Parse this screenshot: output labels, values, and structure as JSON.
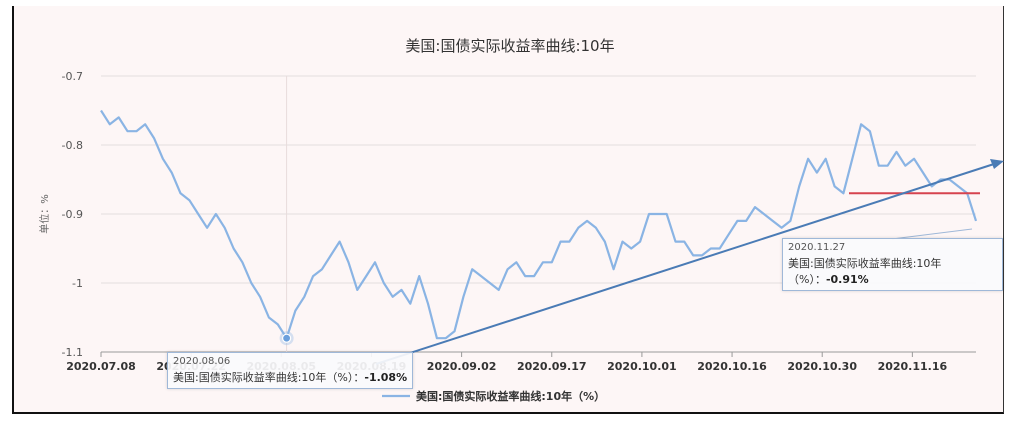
{
  "chart_data": {
    "type": "line",
    "title": "美国:国债实际收益率曲线:10年",
    "ylabel": "单位：%",
    "ylim": [
      -1.1,
      -0.7
    ],
    "yticks": [
      "-0.7",
      "-0.8",
      "-0.9",
      "-1",
      "-1.1"
    ],
    "xtick_labels": [
      "2020.07.08",
      "2020.07.22",
      "2020.08.05",
      "2020.08.19",
      "2020.09.02",
      "2020.09.17",
      "2020.10.01",
      "2020.10.16",
      "2020.10.30",
      "2020.11.16"
    ],
    "legend": "美国:国债实际收益率曲线:10年（%）",
    "series": [
      {
        "name": "美国:国债实际收益率曲线:10年（%）",
        "color": "#8ab4e4",
        "values": [
          -0.75,
          -0.77,
          -0.76,
          -0.78,
          -0.78,
          -0.77,
          -0.79,
          -0.82,
          -0.84,
          -0.87,
          -0.88,
          -0.9,
          -0.92,
          -0.9,
          -0.92,
          -0.95,
          -0.97,
          -1.0,
          -1.02,
          -1.05,
          -1.06,
          -1.08,
          -1.04,
          -1.02,
          -0.99,
          -0.98,
          -0.96,
          -0.94,
          -0.97,
          -1.01,
          -0.99,
          -0.97,
          -1.0,
          -1.02,
          -1.01,
          -1.03,
          -0.99,
          -1.03,
          -1.08,
          -1.08,
          -1.07,
          -1.02,
          -0.98,
          -0.99,
          -1.0,
          -1.01,
          -0.98,
          -0.97,
          -0.99,
          -0.99,
          -0.97,
          -0.97,
          -0.94,
          -0.94,
          -0.92,
          -0.91,
          -0.92,
          -0.94,
          -0.98,
          -0.94,
          -0.95,
          -0.94,
          -0.9,
          -0.9,
          -0.9,
          -0.94,
          -0.94,
          -0.96,
          -0.96,
          -0.95,
          -0.95,
          -0.93,
          -0.91,
          -0.91,
          -0.89,
          -0.9,
          -0.91,
          -0.92,
          -0.91,
          -0.86,
          -0.82,
          -0.84,
          -0.82,
          -0.86,
          -0.87,
          -0.82,
          -0.77,
          -0.78,
          -0.83,
          -0.83,
          -0.81,
          -0.83,
          -0.82,
          -0.84,
          -0.86,
          -0.85,
          -0.85,
          -0.86,
          -0.87,
          -0.91
        ]
      }
    ],
    "annotations": {
      "trend_line_color": "#4a7bb5",
      "hline_color": "#d6434f",
      "hline_value": -0.87,
      "tooltip_min": {
        "date": "2020.08.06",
        "label": "美国:国债实际收益率曲线:10年（%）：",
        "value": "-1.08%"
      },
      "tooltip_last": {
        "date": "2020.11.27",
        "label": "美国:国债实际收益率曲线:10年（%）：",
        "value": "-0.91%"
      }
    }
  }
}
